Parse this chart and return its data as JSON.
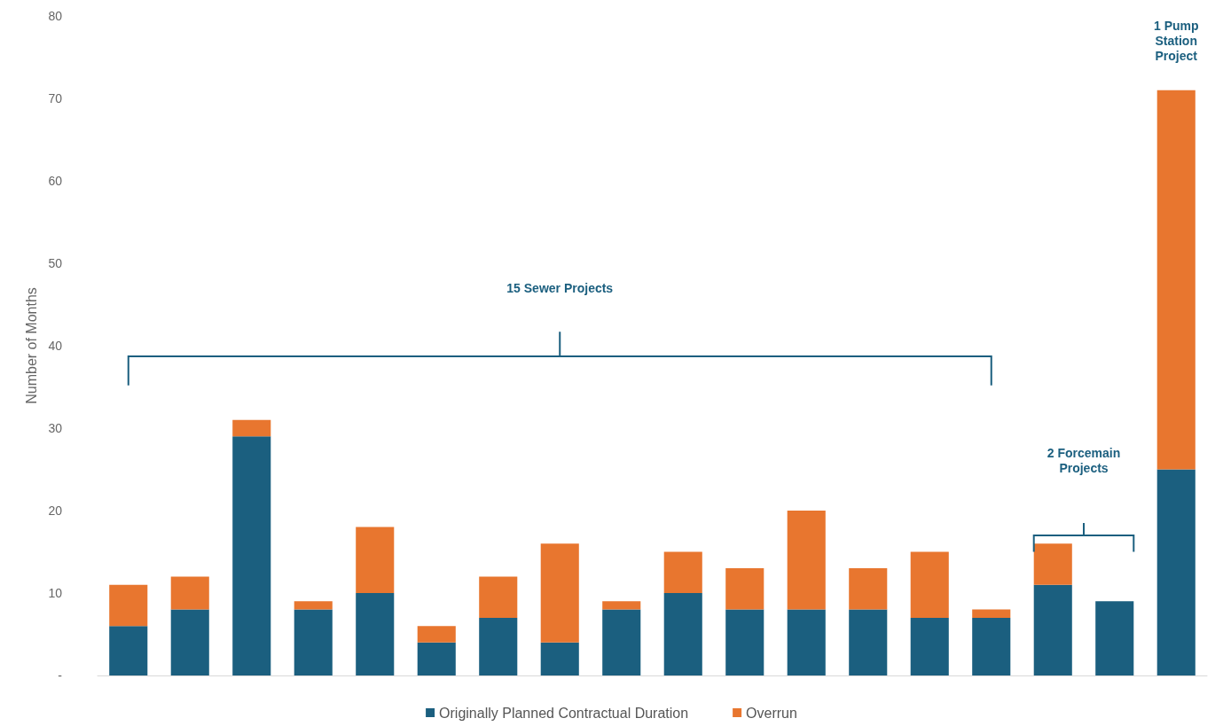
{
  "chart_data": {
    "type": "bar",
    "stacked": true,
    "ylabel": "Number of Months",
    "categories": [
      null,
      null,
      null,
      null,
      null,
      null,
      null,
      null,
      null,
      null,
      null,
      null,
      null,
      null,
      null,
      null,
      null,
      null
    ],
    "series": [
      {
        "name": "Originally Planned Contractual Duration",
        "color": "#1b5f7f",
        "values": [
          6,
          8,
          29,
          8,
          10,
          4,
          7,
          4,
          8,
          10,
          8,
          8,
          8,
          7,
          7,
          11,
          9,
          25
        ]
      },
      {
        "name": "Overrun",
        "color": "#e8762f",
        "values": [
          5,
          4,
          2,
          1,
          8,
          2,
          5,
          12,
          1,
          5,
          5,
          12,
          5,
          8,
          1,
          5,
          0,
          46
        ]
      }
    ],
    "ylim": [
      0,
      80
    ],
    "yticks": [
      {
        "value": 0,
        "label": "-"
      },
      10,
      20,
      30,
      40,
      50,
      60,
      70,
      80
    ],
    "grid": false,
    "legend": "bottom",
    "annotations": [
      "15 Sewer Projects",
      "2 Forcemain Projects",
      "1 Pump Station Project"
    ]
  }
}
